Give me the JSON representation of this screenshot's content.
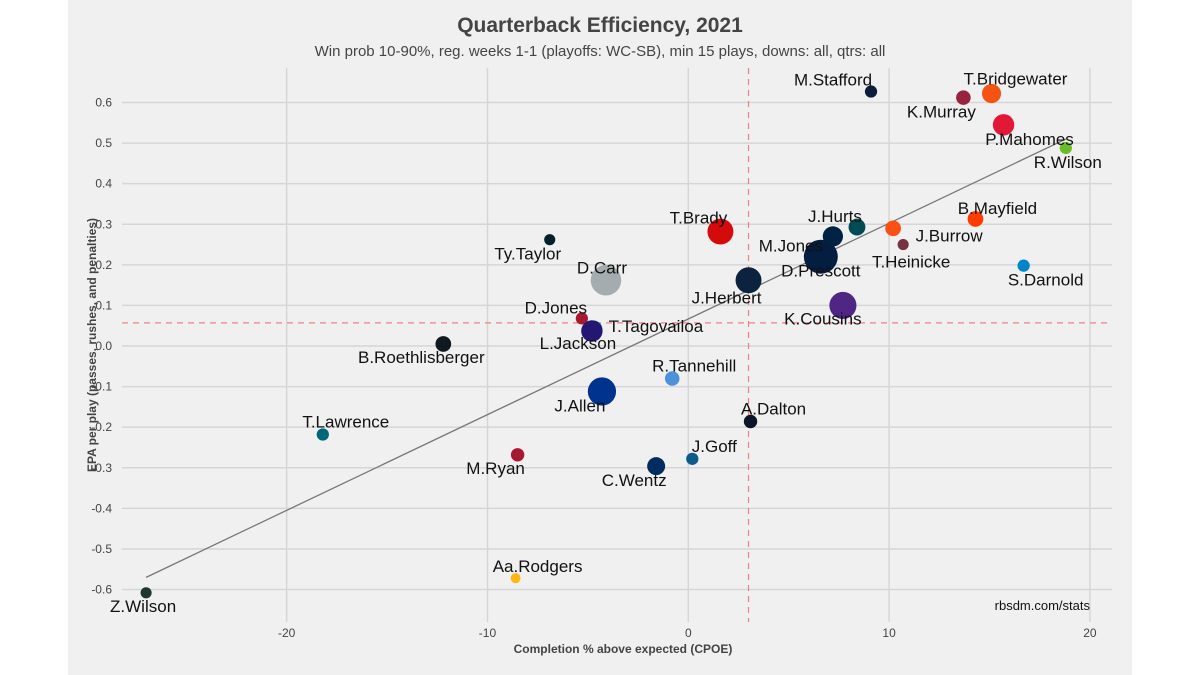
{
  "chart_data": {
    "type": "scatter",
    "title": "Quarterback Efficiency, 2021",
    "subtitle": "Win prob 10-90%, reg. weeks 1-1 (playoffs: WC-SB), min 15 plays, downs: all, qtrs: all",
    "xlabel": "Completion % above expected (CPOE)",
    "ylabel": "EPA per play (passes, rushes, and penalties)",
    "caption": "rbsdm.com/stats",
    "xlim": [
      -28.2,
      21.1
    ],
    "ylim": [
      -0.68,
      0.685
    ],
    "xticks": [
      -20,
      -10,
      0,
      10,
      20
    ],
    "yticks": [
      0.6,
      0.5,
      0.4,
      0.3,
      0.2,
      0.1,
      0.0,
      -0.1,
      -0.2,
      -0.3,
      -0.4,
      -0.5,
      -0.6
    ],
    "ytick_labels": [
      "0.6",
      "0.5",
      "0.4",
      "0.3",
      "0.2",
      "0.1",
      "0.0",
      "-0.1",
      "-0.2",
      "-0.3",
      "-0.4",
      "-0.5",
      "-0.6"
    ],
    "grid": true,
    "mean_lines": {
      "x": 3.0,
      "y": 0.057,
      "color": "#f08080",
      "style": "dashed"
    },
    "trend_line": {
      "x": [
        -27.0,
        18.8
      ],
      "y": [
        -0.57,
        0.51
      ],
      "color": "#777777"
    },
    "points": [
      {
        "name": "M.Stafford",
        "x": 9.1,
        "y": 0.627,
        "size": 1.0,
        "color": "#0b1f3a"
      },
      {
        "name": "T.Bridgewater",
        "x": 15.1,
        "y": 0.622,
        "size": 1.6,
        "color": "#f55314"
      },
      {
        "name": "K.Murray",
        "x": 13.7,
        "y": 0.612,
        "size": 1.2,
        "color": "#97233f"
      },
      {
        "name": "P.Mahomes",
        "x": 15.7,
        "y": 0.545,
        "size": 1.8,
        "color": "#e31837"
      },
      {
        "name": "R.Wilson",
        "x": 18.8,
        "y": 0.488,
        "size": 1.0,
        "color": "#69be28"
      },
      {
        "name": "B.Mayfield",
        "x": 14.3,
        "y": 0.313,
        "size": 1.3,
        "color": "#ff3c00"
      },
      {
        "name": "J.Burrow",
        "x": 10.2,
        "y": 0.29,
        "size": 1.3,
        "color": "#fb4f14"
      },
      {
        "name": "T.Heinicke",
        "x": 10.7,
        "y": 0.25,
        "size": 0.9,
        "color": "#773141"
      },
      {
        "name": "S.Darnold",
        "x": 16.7,
        "y": 0.198,
        "size": 1.0,
        "color": "#0085ca"
      },
      {
        "name": "J.Hurts",
        "x": 8.4,
        "y": 0.293,
        "size": 1.4,
        "color": "#004c54"
      },
      {
        "name": "M.Jones",
        "x": 7.2,
        "y": 0.27,
        "size": 1.7,
        "color": "#002244"
      },
      {
        "name": "D.Prescott",
        "x": 6.6,
        "y": 0.22,
        "size": 2.9,
        "color": "#041e42"
      },
      {
        "name": "T.Brady",
        "x": 1.6,
        "y": 0.282,
        "size": 2.2,
        "color": "#d50a0a"
      },
      {
        "name": "J.Herbert",
        "x": 3.0,
        "y": 0.162,
        "size": 2.2,
        "color": "#0c2340"
      },
      {
        "name": "K.Cousins",
        "x": 7.7,
        "y": 0.1,
        "size": 2.3,
        "color": "#4f2683"
      },
      {
        "name": "Ty.Taylor",
        "x": -6.9,
        "y": 0.262,
        "size": 0.9,
        "color": "#03202f"
      },
      {
        "name": "D.Carr",
        "x": -4.1,
        "y": 0.162,
        "size": 2.6,
        "color": "#a5acaf"
      },
      {
        "name": "D.Jones",
        "x": -5.3,
        "y": 0.068,
        "size": 1.0,
        "color": "#a71930"
      },
      {
        "name": "T.Tagovailoa",
        "x": -4.7,
        "y": 0.042,
        "size": 1.4,
        "color": "#008e97"
      },
      {
        "name": "L.Jackson",
        "x": -4.8,
        "y": 0.037,
        "size": 1.8,
        "color": "#241773"
      },
      {
        "name": "B.Roethlisberger",
        "x": -12.2,
        "y": 0.005,
        "size": 1.3,
        "color": "#101820"
      },
      {
        "name": "R.Tannehill",
        "x": -0.8,
        "y": -0.08,
        "size": 1.2,
        "color": "#4b92db"
      },
      {
        "name": "J.Allen",
        "x": -4.3,
        "y": -0.112,
        "size": 2.4,
        "color": "#00338d"
      },
      {
        "name": "A.Dalton",
        "x": 3.1,
        "y": -0.186,
        "size": 1.1,
        "color": "#0b162a"
      },
      {
        "name": "T.Lawrence",
        "x": -18.2,
        "y": -0.218,
        "size": 1.0,
        "color": "#006778"
      },
      {
        "name": "J.Goff",
        "x": 0.2,
        "y": -0.278,
        "size": 1.0,
        "color": "#0b5c8a"
      },
      {
        "name": "M.Ryan",
        "x": -8.5,
        "y": -0.268,
        "size": 1.1,
        "color": "#a71930"
      },
      {
        "name": "C.Wentz",
        "x": -1.6,
        "y": -0.296,
        "size": 1.5,
        "color": "#002c5f"
      },
      {
        "name": "Aa.Rodgers",
        "x": -8.6,
        "y": -0.572,
        "size": 0.8,
        "color": "#ffb612"
      },
      {
        "name": "Z.Wilson",
        "x": -27.0,
        "y": -0.608,
        "size": 0.9,
        "color": "#203731"
      }
    ]
  }
}
